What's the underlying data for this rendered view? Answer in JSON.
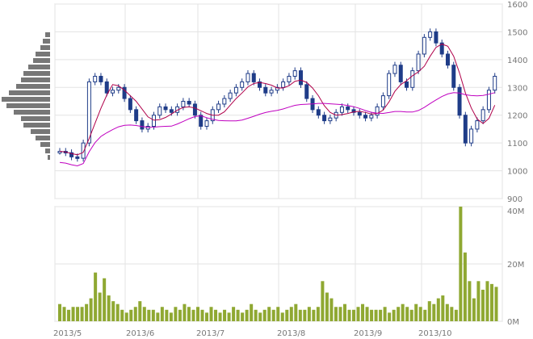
{
  "chart_data": [
    {
      "type": "candlestick",
      "title": "",
      "xlabel": "",
      "ylabel": "",
      "ylim": [
        900,
        1600
      ],
      "y_ticks": [
        "1600",
        "1500",
        "1400",
        "1300",
        "1200",
        "1100",
        "1000",
        "900"
      ],
      "x_ticks": [
        "2013/5",
        "2013/6",
        "2013/7",
        "2013/8",
        "2013/9",
        "2013/10"
      ],
      "grid": true,
      "series": [
        {
          "kind": "candles",
          "color": "#1f3c88",
          "approx_close": [
            1070,
            1065,
            1050,
            1045,
            1100,
            1320,
            1340,
            1320,
            1280,
            1290,
            1300,
            1260,
            1220,
            1180,
            1150,
            1160,
            1200,
            1230,
            1220,
            1210,
            1230,
            1250,
            1240,
            1200,
            1160,
            1180,
            1220,
            1240,
            1260,
            1280,
            1300,
            1320,
            1350,
            1320,
            1300,
            1280,
            1290,
            1300,
            1320,
            1340,
            1360,
            1310,
            1260,
            1220,
            1200,
            1180,
            1190,
            1210,
            1230,
            1220,
            1210,
            1200,
            1190,
            1200,
            1230,
            1270,
            1350,
            1380,
            1320,
            1300,
            1360,
            1420,
            1480,
            1500,
            1460,
            1420,
            1380,
            1300,
            1200,
            1100,
            1150,
            1180,
            1220,
            1290,
            1340
          ]
        },
        {
          "kind": "moving-average-short",
          "color": "#b0004a"
        },
        {
          "kind": "moving-average-long",
          "color": "#c000c0"
        }
      ],
      "price_volume_profile": [
        0.1,
        0.15,
        0.2,
        0.3,
        0.35,
        0.45,
        0.55,
        0.6,
        0.7,
        0.85,
        1.0,
        0.9,
        0.75,
        0.6,
        0.55,
        0.4,
        0.3,
        0.2,
        0.1,
        0.05
      ]
    },
    {
      "type": "bar",
      "title": "",
      "color": "#8fa832",
      "ylim": [
        0,
        40
      ],
      "y_ticks": [
        "40M",
        "20M",
        "0M"
      ],
      "values": [
        6,
        5,
        4,
        5,
        5,
        5,
        6,
        8,
        17,
        10,
        15,
        9,
        7,
        6,
        4,
        3,
        4,
        5,
        7,
        5,
        4,
        4,
        3,
        5,
        4,
        3,
        5,
        4,
        6,
        5,
        4,
        5,
        4,
        3,
        5,
        4,
        3,
        4,
        3,
        5,
        4,
        3,
        4,
        6,
        4,
        3,
        4,
        5,
        4,
        5,
        3,
        4,
        5,
        6,
        4,
        4,
        5,
        4,
        5,
        14,
        10,
        8,
        5,
        5,
        6,
        4,
        4,
        5,
        6,
        5,
        4,
        4,
        4,
        5,
        3,
        4,
        5,
        6,
        5,
        4,
        6,
        5,
        4,
        7,
        6,
        8,
        9,
        6,
        5,
        4,
        40,
        24,
        14,
        8,
        14,
        11,
        14,
        13,
        12
      ]
    }
  ]
}
